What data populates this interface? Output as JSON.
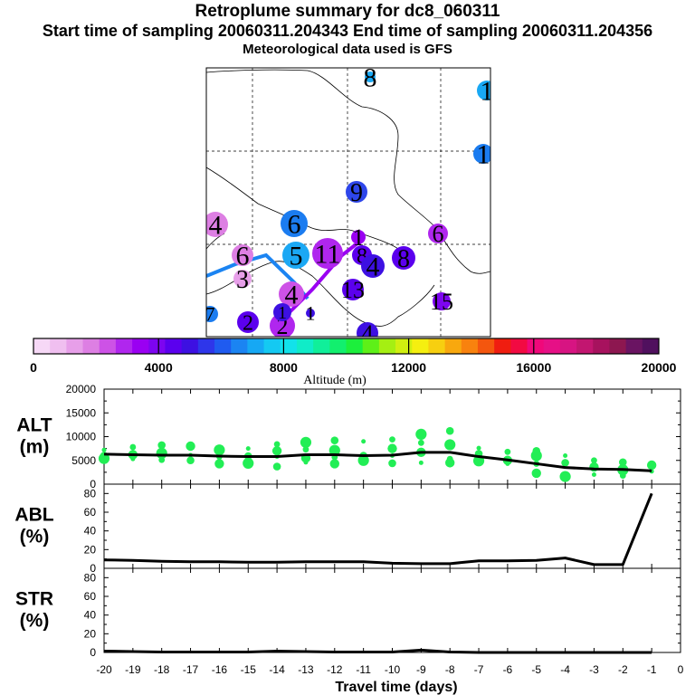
{
  "header": {
    "title": "Retroplume summary for dc8_060311",
    "sampling_line": "Start time of sampling 20060311.204343     End time of sampling 20060311.204356",
    "met_line": "Meteorological data used is GFS"
  },
  "colors": {
    "line": "#000000",
    "dots": "#22ee55"
  },
  "colorbar": {
    "ticks": [
      "0",
      "4000",
      "8000",
      "12000",
      "16000",
      "20000"
    ],
    "label": "Altitude  (m)",
    "swatches": [
      "#f6d8f6",
      "#f0bff0",
      "#e79fe9",
      "#dd7fe3",
      "#cd52e6",
      "#b026ee",
      "#9a00f2",
      "#7d05f0",
      "#5b00ee",
      "#3d10e2",
      "#2e36ea",
      "#1f5bf0",
      "#1b84f2",
      "#16a8f4",
      "#14c9f2",
      "#12e2ea",
      "#10ecc8",
      "#10ef9a",
      "#12ef6e",
      "#1cef3c",
      "#5ef018",
      "#a5ef12",
      "#d0ef10",
      "#f5ef10",
      "#f7cf10",
      "#f8a80e",
      "#f8820e",
      "#f4560e",
      "#f01d10",
      "#f20a42",
      "#f0087a",
      "#e61086",
      "#d71482",
      "#c21670",
      "#a7125e",
      "#8d1750",
      "#6a1462",
      "#50105e"
    ]
  },
  "map": {
    "labels": [
      {
        "text": "8",
        "color": "#18a8f4"
      },
      {
        "text": "1",
        "color": "#18a8f4"
      },
      {
        "text": "1",
        "color": "#1b7cf0"
      },
      {
        "text": "9",
        "color": "#2e46ea"
      },
      {
        "text": "4",
        "color": "#dd7fe3"
      },
      {
        "text": "6",
        "color": "#1b7cf0"
      },
      {
        "text": "1",
        "color": "#9a00f2"
      },
      {
        "text": "6",
        "color": "#b026ee"
      },
      {
        "text": "6",
        "color": "#dd7fe3"
      },
      {
        "text": "5",
        "color": "#1ba8f4"
      },
      {
        "text": "11",
        "color": "#b026ee"
      },
      {
        "text": "8",
        "color": "#5b00ee"
      },
      {
        "text": "4",
        "color": "#3d10e2"
      },
      {
        "text": "8",
        "color": "#5b00ee"
      },
      {
        "text": "3",
        "color": "#e79fe9"
      },
      {
        "text": "4",
        "color": "#cd52e6"
      },
      {
        "text": "1",
        "color": "#3d10e2"
      },
      {
        "text": "13",
        "color": "#5b00ee"
      },
      {
        "text": "15",
        "color": "#7d05f0"
      },
      {
        "text": "2",
        "color": "#5b00ee"
      },
      {
        "text": "2",
        "color": "#b026ee"
      },
      {
        "text": "1",
        "color": "#3d10e2"
      },
      {
        "text": "4",
        "color": "#3d10e2"
      },
      {
        "text": "7",
        "color": "#1b7cf0"
      }
    ]
  },
  "chart_data": [
    {
      "type": "line",
      "panel": "ALT",
      "ylabel_lines": [
        "ALT",
        "(m)"
      ],
      "ylim": [
        0,
        20000
      ],
      "yticks": [
        "0",
        "5000",
        "10000",
        "15000",
        "20000"
      ],
      "x": [
        -20,
        -19,
        -18,
        -17,
        -16,
        -15,
        -14,
        -13,
        -12,
        -11,
        -10,
        -9,
        -8,
        -7,
        -6,
        -5,
        -4,
        -3,
        -2,
        -1
      ],
      "series": [
        {
          "name": "mean altitude",
          "values": [
            6300,
            6200,
            6100,
            6100,
            5900,
            5800,
            5800,
            6200,
            6200,
            6000,
            6100,
            6700,
            6700,
            5800,
            5100,
            4300,
            3500,
            3200,
            3100,
            2800
          ]
        }
      ],
      "scatter": [
        [
          -20,
          7200
        ],
        [
          -20,
          6000
        ],
        [
          -20,
          5400
        ],
        [
          -19,
          7800
        ],
        [
          -19,
          6200
        ],
        [
          -19,
          5300
        ],
        [
          -18,
          8200
        ],
        [
          -18,
          6500
        ],
        [
          -18,
          5100
        ],
        [
          -17,
          8000
        ],
        [
          -17,
          6100
        ],
        [
          -17,
          5000
        ],
        [
          -16,
          7200
        ],
        [
          -16,
          5800
        ],
        [
          -16,
          4300
        ],
        [
          -15,
          7500
        ],
        [
          -15,
          5900
        ],
        [
          -15,
          4400
        ],
        [
          -14,
          8400
        ],
        [
          -14,
          7000
        ],
        [
          -14,
          5800
        ],
        [
          -14,
          3700
        ],
        [
          -13,
          8800
        ],
        [
          -13,
          7300
        ],
        [
          -13,
          5500
        ],
        [
          -13,
          4600
        ],
        [
          -12,
          9200
        ],
        [
          -12,
          7100
        ],
        [
          -12,
          5700
        ],
        [
          -12,
          4300
        ],
        [
          -11,
          9000
        ],
        [
          -11,
          6000
        ],
        [
          -11,
          5000
        ],
        [
          -10,
          9400
        ],
        [
          -10,
          7500
        ],
        [
          -10,
          6000
        ],
        [
          -10,
          4400
        ],
        [
          -9,
          10500
        ],
        [
          -9,
          8700
        ],
        [
          -9,
          6700
        ],
        [
          -9,
          4500
        ],
        [
          -8,
          11200
        ],
        [
          -8,
          8300
        ],
        [
          -8,
          5300
        ],
        [
          -8,
          4500
        ],
        [
          -7,
          7600
        ],
        [
          -7,
          6400
        ],
        [
          -7,
          4900
        ],
        [
          -6,
          6800
        ],
        [
          -6,
          5000
        ],
        [
          -6,
          4300
        ],
        [
          -5,
          7000
        ],
        [
          -5,
          6000
        ],
        [
          -5,
          4300
        ],
        [
          -5,
          2300
        ],
        [
          -4,
          6000
        ],
        [
          -4,
          4500
        ],
        [
          -4,
          1600
        ],
        [
          -3,
          5000
        ],
        [
          -3,
          3600
        ],
        [
          -3,
          2000
        ],
        [
          -2,
          4600
        ],
        [
          -2,
          3000
        ],
        [
          -2,
          1800
        ],
        [
          -1,
          4000
        ],
        [
          -1,
          2700
        ]
      ]
    },
    {
      "type": "line",
      "panel": "ABL",
      "ylabel_lines": [
        "ABL",
        "(%)"
      ],
      "ylim": [
        0,
        90
      ],
      "yticks": [
        "0",
        "20",
        "40",
        "60",
        "80"
      ],
      "x": [
        -20,
        -19,
        -18,
        -17,
        -16,
        -15,
        -14,
        -13,
        -12,
        -11,
        -10,
        -9,
        -8,
        -7,
        -6,
        -5,
        -4,
        -3,
        -2,
        -1
      ],
      "series": [
        {
          "name": "ABL fraction",
          "values": [
            9,
            8.5,
            7.5,
            7,
            7,
            6.5,
            6.5,
            7,
            7,
            7,
            5.5,
            5,
            5,
            8,
            8,
            8.5,
            11,
            4,
            4,
            80
          ]
        }
      ]
    },
    {
      "type": "line",
      "panel": "STR",
      "ylabel_lines": [
        "STR",
        "(%)"
      ],
      "ylim": [
        0,
        90
      ],
      "yticks": [
        "0",
        "20",
        "40",
        "60",
        "80"
      ],
      "x": [
        -20,
        -19,
        -18,
        -17,
        -16,
        -15,
        -14,
        -13,
        -12,
        -11,
        -10,
        -9,
        -8,
        -7,
        -6,
        -5,
        -4,
        -3,
        -2,
        -1
      ],
      "series": [
        {
          "name": "stratospheric fraction",
          "values": [
            1.5,
            1,
            0.5,
            0.5,
            0.5,
            0.5,
            1.5,
            1,
            0.5,
            0.5,
            0.5,
            2.5,
            0.5,
            0,
            0,
            0,
            0,
            0,
            0,
            0
          ]
        }
      ],
      "xticks": [
        "-20",
        "-19",
        "-18",
        "-17",
        "-16",
        "-15",
        "-14",
        "-13",
        "-12",
        "-11",
        "-10",
        "-9",
        "-8",
        "-7",
        "-6",
        "-5",
        "-4",
        "-3",
        "-2",
        "-1",
        "0"
      ],
      "xlabel": "Travel time (days)"
    }
  ]
}
